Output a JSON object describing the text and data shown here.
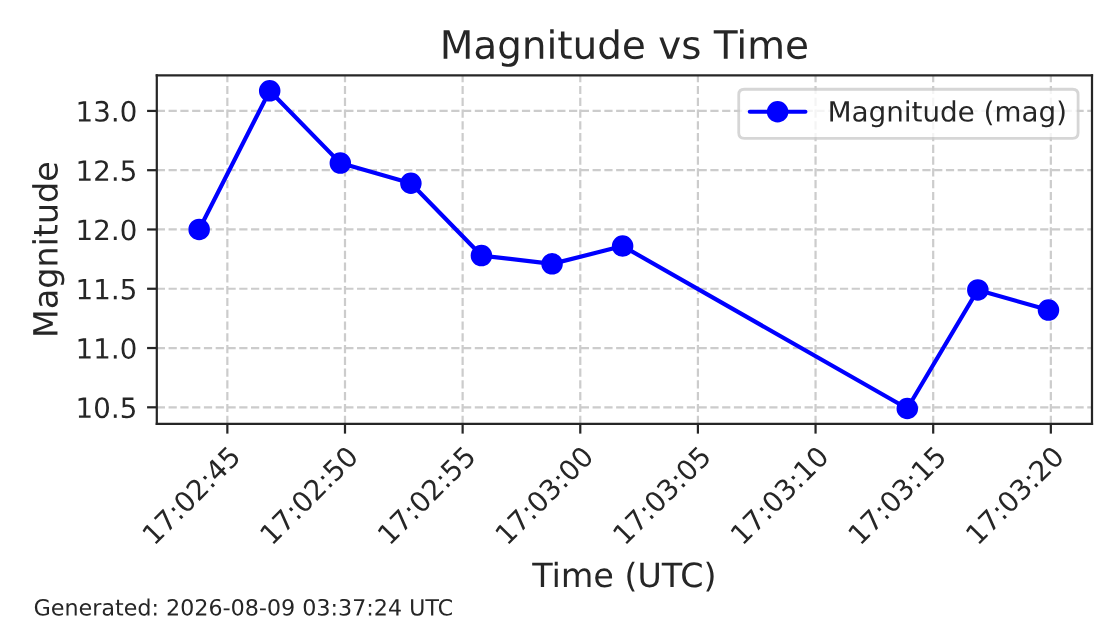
{
  "chart_data": {
    "type": "line",
    "title": "Magnitude vs Time",
    "xlabel": "Time (UTC)",
    "ylabel": "Magnitude",
    "x": [
      17.0455,
      17.046333,
      17.047167,
      17.048,
      17.048833,
      17.049667,
      17.0505,
      17.053861,
      17.054694,
      17.055528
    ],
    "series": [
      {
        "name": "Magnitude (mag)",
        "color": "#0000ff",
        "values": [
          12.0,
          13.17,
          12.56,
          12.39,
          11.78,
          11.71,
          11.86,
          10.49,
          11.49,
          11.32
        ]
      }
    ],
    "xlim": [
      17.045,
      17.056042
    ],
    "ylim": [
      10.36,
      13.3
    ],
    "xticks": [
      {
        "value": 17.045833,
        "label": "17:02:45"
      },
      {
        "value": 17.047222,
        "label": "17:02:50"
      },
      {
        "value": 17.048611,
        "label": "17:02:55"
      },
      {
        "value": 17.05,
        "label": "17:03:00"
      },
      {
        "value": 17.051389,
        "label": "17:03:05"
      },
      {
        "value": 17.052778,
        "label": "17:03:10"
      },
      {
        "value": 17.054167,
        "label": "17:03:15"
      },
      {
        "value": 17.055556,
        "label": "17:03:20"
      }
    ],
    "yticks": [
      10.5,
      {
        "value": 11,
        "label": "11.0"
      },
      11.5,
      {
        "value": 12,
        "label": "12.0"
      },
      12.5,
      {
        "value": 13,
        "label": "13.0"
      }
    ],
    "grid": true,
    "legend": "top right",
    "marker": "circle",
    "line_style": "solid",
    "annotations": [
      "Generated: 2026-08-09 03:37:24 UTC"
    ]
  }
}
